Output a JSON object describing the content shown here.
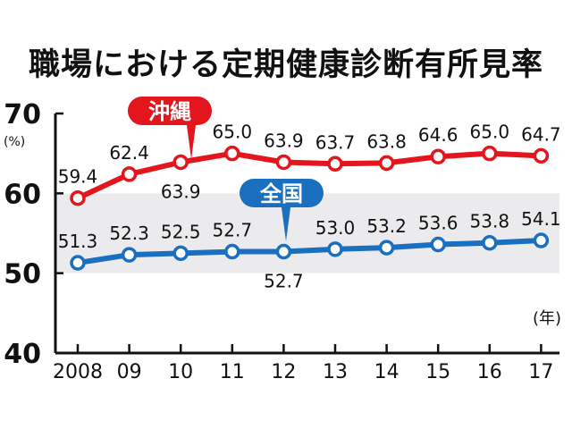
{
  "chart_data": {
    "type": "line",
    "title": "職場における定期健康診断有所見率",
    "y_unit": "(%)",
    "x_unit": "(年)",
    "categories": [
      "2008",
      "09",
      "10",
      "11",
      "12",
      "13",
      "14",
      "15",
      "16",
      "17"
    ],
    "ylim": [
      40,
      70
    ],
    "yticks": [
      40,
      50,
      60,
      70
    ],
    "shaded_band": [
      50,
      60
    ],
    "series": [
      {
        "name": "沖縄",
        "color": "#e3161d",
        "values": [
          59.4,
          62.4,
          63.9,
          65.0,
          63.9,
          63.7,
          63.8,
          64.6,
          65.0,
          64.7
        ]
      },
      {
        "name": "全国",
        "color": "#1a6fbf",
        "values": [
          51.3,
          52.3,
          52.5,
          52.7,
          52.7,
          53.0,
          53.2,
          53.6,
          53.8,
          54.1
        ]
      }
    ],
    "grid": false,
    "colors": {
      "band": "#ebebed",
      "axis": "#111111"
    }
  }
}
